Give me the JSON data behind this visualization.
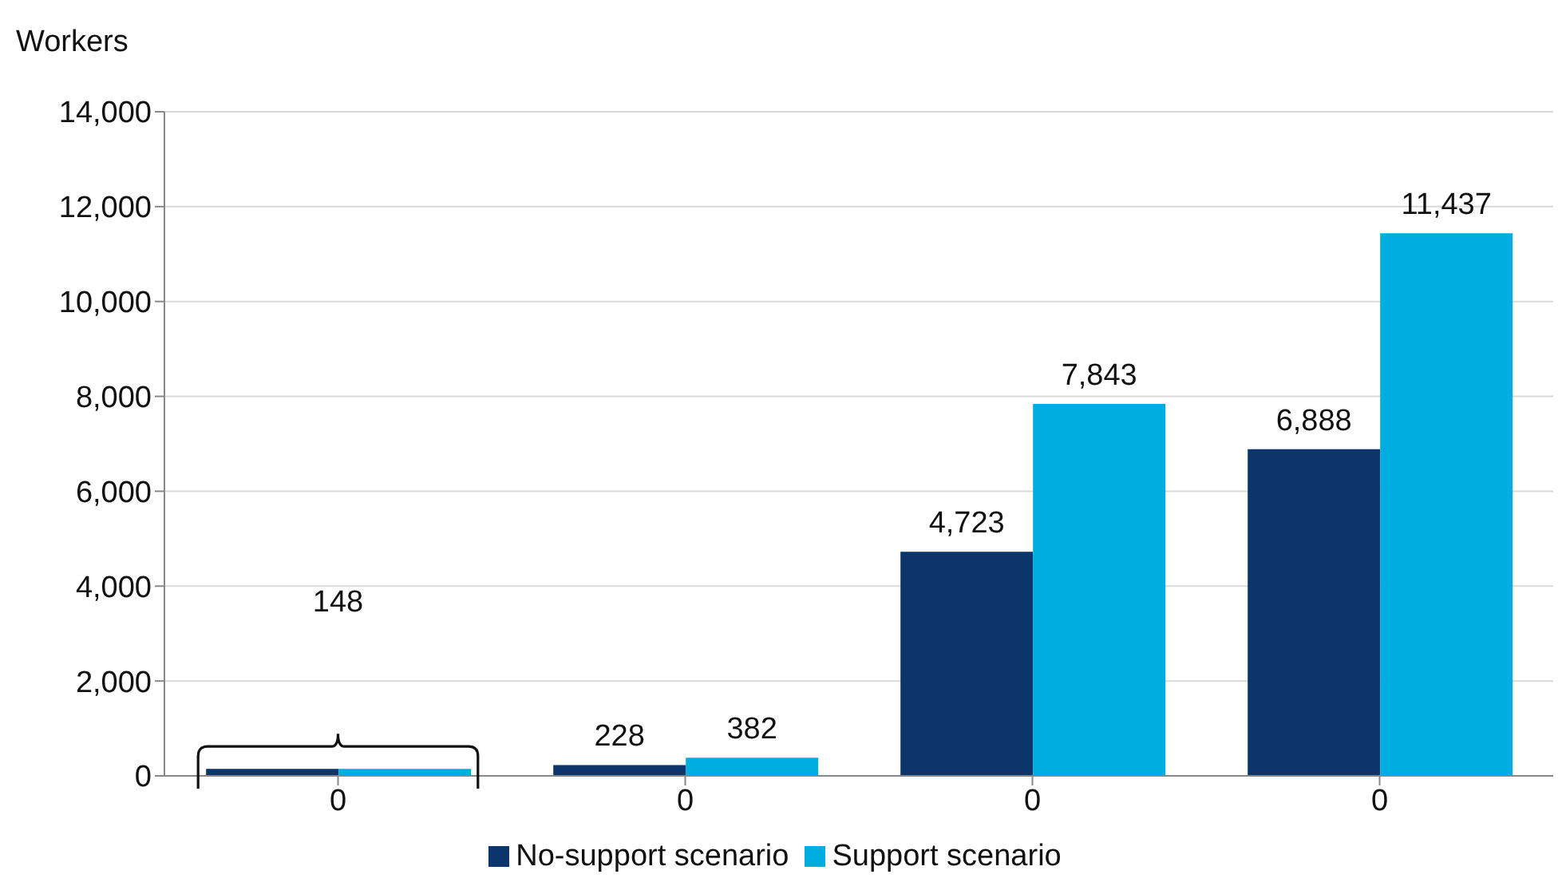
{
  "chart_data": {
    "type": "bar",
    "ylabel": "Workers",
    "categories": [
      "0",
      "0",
      "0",
      "0"
    ],
    "series": [
      {
        "name": "No-support scenario",
        "color": "#0b356b",
        "values": [
          148,
          228,
          4723,
          6888
        ],
        "value_labels": [
          null,
          "228",
          "4,723",
          "6,888"
        ]
      },
      {
        "name": "Support scenario",
        "color": "#00ade0",
        "values": [
          148,
          382,
          7843,
          11437
        ],
        "value_labels": [
          null,
          "382",
          "7,843",
          "11,437"
        ]
      }
    ],
    "annotations": [
      "148"
    ],
    "ylim": [
      0,
      14000
    ],
    "yticks": [
      {
        "value": 0,
        "label": "0"
      },
      {
        "value": 2000,
        "label": "2,000"
      },
      {
        "value": 4000,
        "label": "4,000"
      },
      {
        "value": 6000,
        "label": "6,000"
      },
      {
        "value": 8000,
        "label": "8,000"
      },
      {
        "value": 10000,
        "label": "10,000"
      },
      {
        "value": 12000,
        "label": "12,000"
      },
      {
        "value": 14000,
        "label": "14,000"
      }
    ],
    "grid": "y",
    "legend": "bottom"
  }
}
